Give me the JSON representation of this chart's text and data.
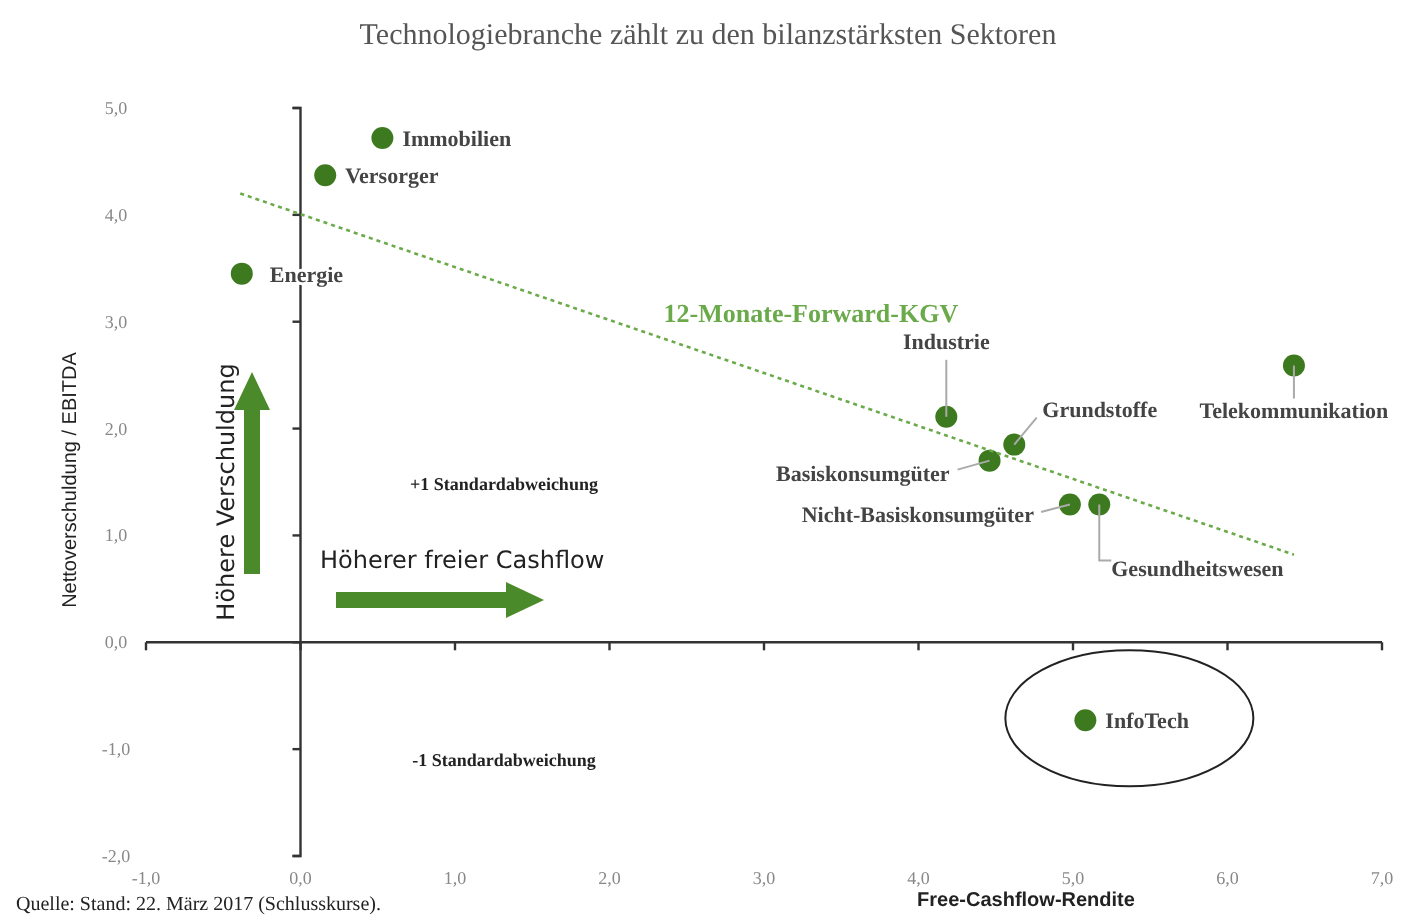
{
  "chart_data": {
    "type": "scatter",
    "title": "Technologiebranche zählt zu den bilanzstärksten Sektoren",
    "xlabel": "Free-Cashflow-Rendite",
    "ylabel": "Nettoverschuldung / EBITDA",
    "xlim": [
      -1,
      7
    ],
    "ylim": [
      -2,
      5
    ],
    "xticks": [
      {
        "value": -1,
        "label": "-1,0"
      },
      {
        "value": 0,
        "label": "0,0"
      },
      {
        "value": 1,
        "label": "1,0"
      },
      {
        "value": 2,
        "label": "2,0"
      },
      {
        "value": 3,
        "label": "3,0"
      },
      {
        "value": 4,
        "label": "4,0"
      },
      {
        "value": 5,
        "label": "5,0"
      },
      {
        "value": 6,
        "label": "6,0"
      },
      {
        "value": 7,
        "label": "7,0"
      }
    ],
    "yticks": [
      {
        "value": -2,
        "label": "-2,0"
      },
      {
        "value": -1,
        "label": "-1,0"
      },
      {
        "value": 0,
        "label": "0,0"
      },
      {
        "value": 1,
        "label": "1,0"
      },
      {
        "value": 2,
        "label": "2,0"
      },
      {
        "value": 3,
        "label": "3,0"
      },
      {
        "value": 4,
        "label": "4,0"
      },
      {
        "value": 5,
        "label": "5,0"
      }
    ],
    "grid": false,
    "legend": false,
    "marker": "circle",
    "ref_lines": [
      {
        "axis": "y",
        "value": 0,
        "color": "#333333"
      }
    ],
    "series": [
      {
        "color": "#3d7a1f",
        "x": [
          0.53,
          0.16,
          -0.38,
          4.18,
          4.62,
          4.46,
          4.98,
          5.17,
          6.43,
          5.08
        ],
        "values": [
          4.72,
          4.37,
          3.45,
          2.11,
          1.85,
          1.7,
          1.29,
          1.29,
          2.59,
          -0.73
        ]
      },
      {
        "type": "line",
        "name": "12-Monate-Forward-KGV",
        "color": "#6aaa4a",
        "line_style": "dotted",
        "marker": "none",
        "x": [
          -0.39,
          6.43
        ],
        "values": [
          4.2,
          0.82
        ]
      }
    ],
    "annotations": [
      {
        "text": "Immobilien",
        "x": 0.53,
        "y": 4.72
      },
      {
        "text": "Versorger",
        "x": 0.16,
        "y": 4.37
      },
      {
        "text": "Energie",
        "x": -0.38,
        "y": 3.45
      },
      {
        "text": "Industrie",
        "x": 4.18,
        "y": 2.11
      },
      {
        "text": "Grundstoffe",
        "x": 4.62,
        "y": 1.85
      },
      {
        "text": "Basiskonsumgüter",
        "x": 4.46,
        "y": 1.7
      },
      {
        "text": "Nicht-Basiskonsumgüter",
        "x": 4.98,
        "y": 1.29
      },
      {
        "text": "Gesundheitswesen",
        "x": 5.17,
        "y": 1.29
      },
      {
        "text": "Telekommunikation",
        "x": 6.43,
        "y": 2.59
      },
      {
        "text": "InfoTech",
        "x": 5.08,
        "y": -0.73
      },
      "+1 Standardabweichung",
      "-1 Standardabweichung",
      "Höhere Verschuldung",
      "Höherer freier Cashflow",
      "Quelle: Stand: 22. März 2017 (Schlusskurse)."
    ]
  }
}
